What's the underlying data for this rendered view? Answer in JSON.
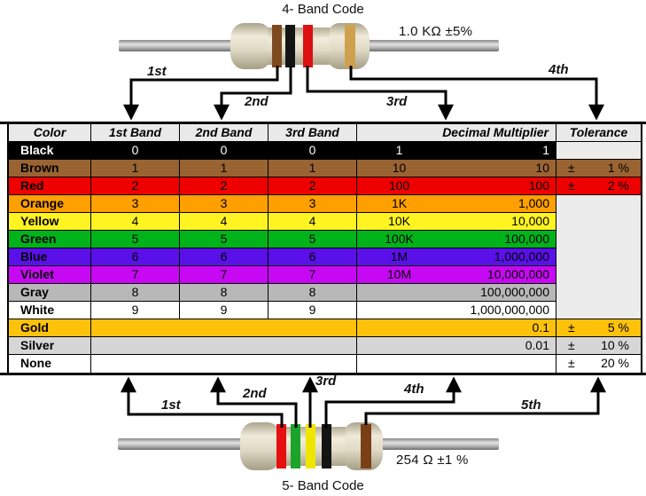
{
  "top_figure": {
    "title": "4- Band Code",
    "value_label": "1.0 KΩ  ±5%",
    "bands": [
      "brown",
      "black",
      "red",
      "gold"
    ],
    "band_colors": [
      "#7d4a20",
      "#141414",
      "#dd1111",
      "#cfa14f"
    ],
    "arrow_labels": [
      "1st",
      "2nd",
      "3rd",
      "4th"
    ]
  },
  "bottom_figure": {
    "title": "5- Band Code",
    "value_label": "254 Ω  ±1 %",
    "bands": [
      "red",
      "green",
      "yellow",
      "black",
      "brown"
    ],
    "band_colors": [
      "#e51010",
      "#1ba32a",
      "#efe600",
      "#141414",
      "#7a3f16"
    ],
    "arrow_labels": [
      "1st",
      "2nd",
      "3rd",
      "4th",
      "5th"
    ]
  },
  "table": {
    "headers": [
      "Color",
      "1st Band",
      "2nd Band",
      "3rd Band",
      "Decimal Multiplier",
      "Tolerance"
    ],
    "plus_minus": "±",
    "empty_tolerance_bg": "#ececec",
    "header_bg": "#e9e9e9",
    "rows": [
      {
        "name": "Black",
        "bg": "#000000",
        "fg": "#ffffff",
        "bands": [
          "0",
          "0",
          "0"
        ],
        "mult_short": "1",
        "mult_full": "1",
        "tolerance": null,
        "merged": false
      },
      {
        "name": "Brown",
        "bg": "#9a6332",
        "fg": "#000000",
        "bands": [
          "1",
          "1",
          "1"
        ],
        "mult_short": "10",
        "mult_full": "10",
        "tolerance": "1 %",
        "merged": false
      },
      {
        "name": "Red",
        "bg": "#ee0000",
        "fg": "#000000",
        "bands": [
          "2",
          "2",
          "2"
        ],
        "mult_short": "100",
        "mult_full": "100",
        "tolerance": "2 %",
        "merged": false
      },
      {
        "name": "Orange",
        "bg": "#ff9f00",
        "fg": "#000000",
        "bands": [
          "3",
          "3",
          "3"
        ],
        "mult_short": "1K",
        "mult_full": "1,000",
        "tolerance": null,
        "merged": false
      },
      {
        "name": "Yellow",
        "bg": "#fff321",
        "fg": "#000000",
        "bands": [
          "4",
          "4",
          "4"
        ],
        "mult_short": "10K",
        "mult_full": "10,000",
        "tolerance": null,
        "merged": false
      },
      {
        "name": "Green",
        "bg": "#00b31b",
        "fg": "#000000",
        "bands": [
          "5",
          "5",
          "5"
        ],
        "mult_short": "100K",
        "mult_full": "100,000",
        "tolerance": null,
        "merged": false
      },
      {
        "name": "Blue",
        "bg": "#5a10e8",
        "fg": "#000000",
        "bands": [
          "6",
          "6",
          "6"
        ],
        "mult_short": "1M",
        "mult_full": "1,000,000",
        "tolerance": null,
        "merged": false
      },
      {
        "name": "Violet",
        "bg": "#c609f2",
        "fg": "#000000",
        "bands": [
          "7",
          "7",
          "7"
        ],
        "mult_short": "10M",
        "mult_full": "10,000,000",
        "tolerance": null,
        "merged": false
      },
      {
        "name": "Gray",
        "bg": "#b8b8b8",
        "fg": "#000000",
        "bands": [
          "8",
          "8",
          "8"
        ],
        "mult_short": "",
        "mult_full": "100,000,000",
        "tolerance": null,
        "merged": false
      },
      {
        "name": "White",
        "bg": "#ffffff",
        "fg": "#000000",
        "bands": [
          "9",
          "9",
          "9"
        ],
        "mult_short": "",
        "mult_full": "1,000,000,000",
        "tolerance": null,
        "merged": false
      },
      {
        "name": "Gold",
        "bg": "#fec20b",
        "fg": "#000000",
        "bands": [],
        "mult_short": "",
        "mult_full": "0.1",
        "tolerance": "5 %",
        "merged": true
      },
      {
        "name": "Silver",
        "bg": "#d6d6d6",
        "fg": "#000000",
        "bands": [],
        "mult_short": "",
        "mult_full": "0.01",
        "tolerance": "10 %",
        "merged": true
      },
      {
        "name": "None",
        "bg": "#ffffff",
        "fg": "#000000",
        "bands": [],
        "mult_short": "",
        "mult_full": "",
        "tolerance": "20 %",
        "merged": true
      }
    ]
  }
}
